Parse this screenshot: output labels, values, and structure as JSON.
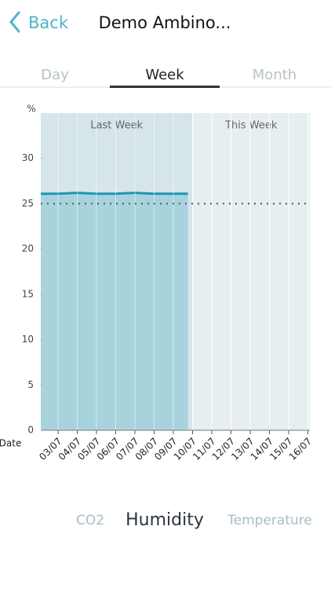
{
  "header": {
    "back": "Back",
    "title": "Demo Ambino..."
  },
  "tabs": {
    "items": [
      "Day",
      "Week",
      "Month"
    ],
    "selected": 1
  },
  "chart_data": {
    "type": "line",
    "y_label": "%",
    "x_label": "Date",
    "regions": [
      "Last Week",
      "This Week"
    ],
    "categories": [
      "03/07",
      "04/07",
      "05/07",
      "06/07",
      "07/07",
      "08/07",
      "09/07",
      "10/07",
      "11/07",
      "12/07",
      "13/07",
      "14/07",
      "15/07",
      "16/07"
    ],
    "series": [
      {
        "name": "Humidity",
        "color": "#1a97b3",
        "values": [
          26.1,
          26.2,
          26.1,
          26.1,
          26.2,
          26.1,
          26.1,
          null,
          null,
          null,
          null,
          null,
          null,
          null
        ]
      }
    ],
    "reference_line": 25,
    "ylim": [
      0,
      35
    ],
    "yticks": [
      0,
      5,
      10,
      15,
      20,
      25,
      30
    ],
    "grid": true
  },
  "metrics": {
    "items": [
      "CO2",
      "Humidity",
      "Temperature"
    ],
    "selected": 1
  }
}
